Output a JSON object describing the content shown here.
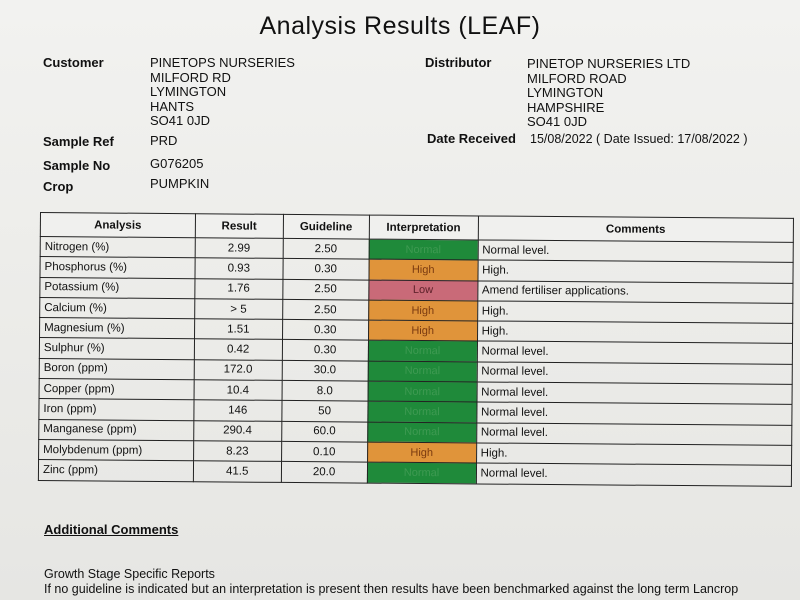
{
  "title": "Analysis Results  (LEAF)",
  "customer": {
    "label": "Customer",
    "lines": [
      "PINETOPS NURSERIES",
      "MILFORD RD",
      "LYMINGTON",
      "HANTS",
      "SO41 0JD"
    ]
  },
  "distributor": {
    "label": "Distributor",
    "lines": [
      "PINETOP NURSERIES LTD",
      "MILFORD ROAD",
      "LYMINGTON",
      "HAMPSHIRE",
      "SO41 0JD"
    ]
  },
  "sample_ref": {
    "label": "Sample Ref",
    "value": "PRD"
  },
  "date_received": {
    "label": "Date Received",
    "value": "15/08/2022  ( Date Issued: 17/08/2022 )"
  },
  "sample_no": {
    "label": "Sample No",
    "value": "G076205"
  },
  "crop": {
    "label": "Crop",
    "value": "PUMPKIN"
  },
  "table": {
    "headers": [
      "Analysis",
      "Result",
      "Guideline",
      "Interpretation",
      "Comments"
    ],
    "rows": [
      {
        "analysis": "Nitrogen (%)",
        "result": "2.99",
        "guideline": "2.50",
        "interpretation": "Normal",
        "comment": "Normal level."
      },
      {
        "analysis": "Phosphorus (%)",
        "result": "0.93",
        "guideline": "0.30",
        "interpretation": "High",
        "comment": "High."
      },
      {
        "analysis": "Potassium (%)",
        "result": "1.76",
        "guideline": "2.50",
        "interpretation": "Low",
        "comment": "Amend fertiliser applications."
      },
      {
        "analysis": "Calcium (%)",
        "result": "> 5",
        "guideline": "2.50",
        "interpretation": "High",
        "comment": "High."
      },
      {
        "analysis": "Magnesium (%)",
        "result": "1.51",
        "guideline": "0.30",
        "interpretation": "High",
        "comment": "High."
      },
      {
        "analysis": "Sulphur (%)",
        "result": "0.42",
        "guideline": "0.30",
        "interpretation": "Normal",
        "comment": "Normal level."
      },
      {
        "analysis": "Boron (ppm)",
        "result": "172.0",
        "guideline": "30.0",
        "interpretation": "Normal",
        "comment": "Normal level."
      },
      {
        "analysis": "Copper (ppm)",
        "result": "10.4",
        "guideline": "8.0",
        "interpretation": "Normal",
        "comment": "Normal level."
      },
      {
        "analysis": "Iron (ppm)",
        "result": "146",
        "guideline": "50",
        "interpretation": "Normal",
        "comment": "Normal level."
      },
      {
        "analysis": "Manganese (ppm)",
        "result": "290.4",
        "guideline": "60.0",
        "interpretation": "Normal",
        "comment": "Normal level."
      },
      {
        "analysis": "Molybdenum (ppm)",
        "result": "8.23",
        "guideline": "0.10",
        "interpretation": "High",
        "comment": "High."
      },
      {
        "analysis": "Zinc (ppm)",
        "result": "41.5",
        "guideline": "20.0",
        "interpretation": "Normal",
        "comment": "Normal level."
      }
    ]
  },
  "interpretation_colors": {
    "Normal": {
      "bg": "#1f8a3a",
      "fg": "#3e9a52"
    },
    "High": {
      "bg": "#e0943a",
      "fg": "#7a3a10"
    },
    "Low": {
      "bg": "#c96a78",
      "fg": "#5a1f28"
    }
  },
  "additional_comments_label": "Additional Comments",
  "footer": {
    "line1": "Growth Stage Specific Reports",
    "line2": "If no guideline is indicated but an interpretation is present then results have been benchmarked against the long term Lancrop"
  }
}
